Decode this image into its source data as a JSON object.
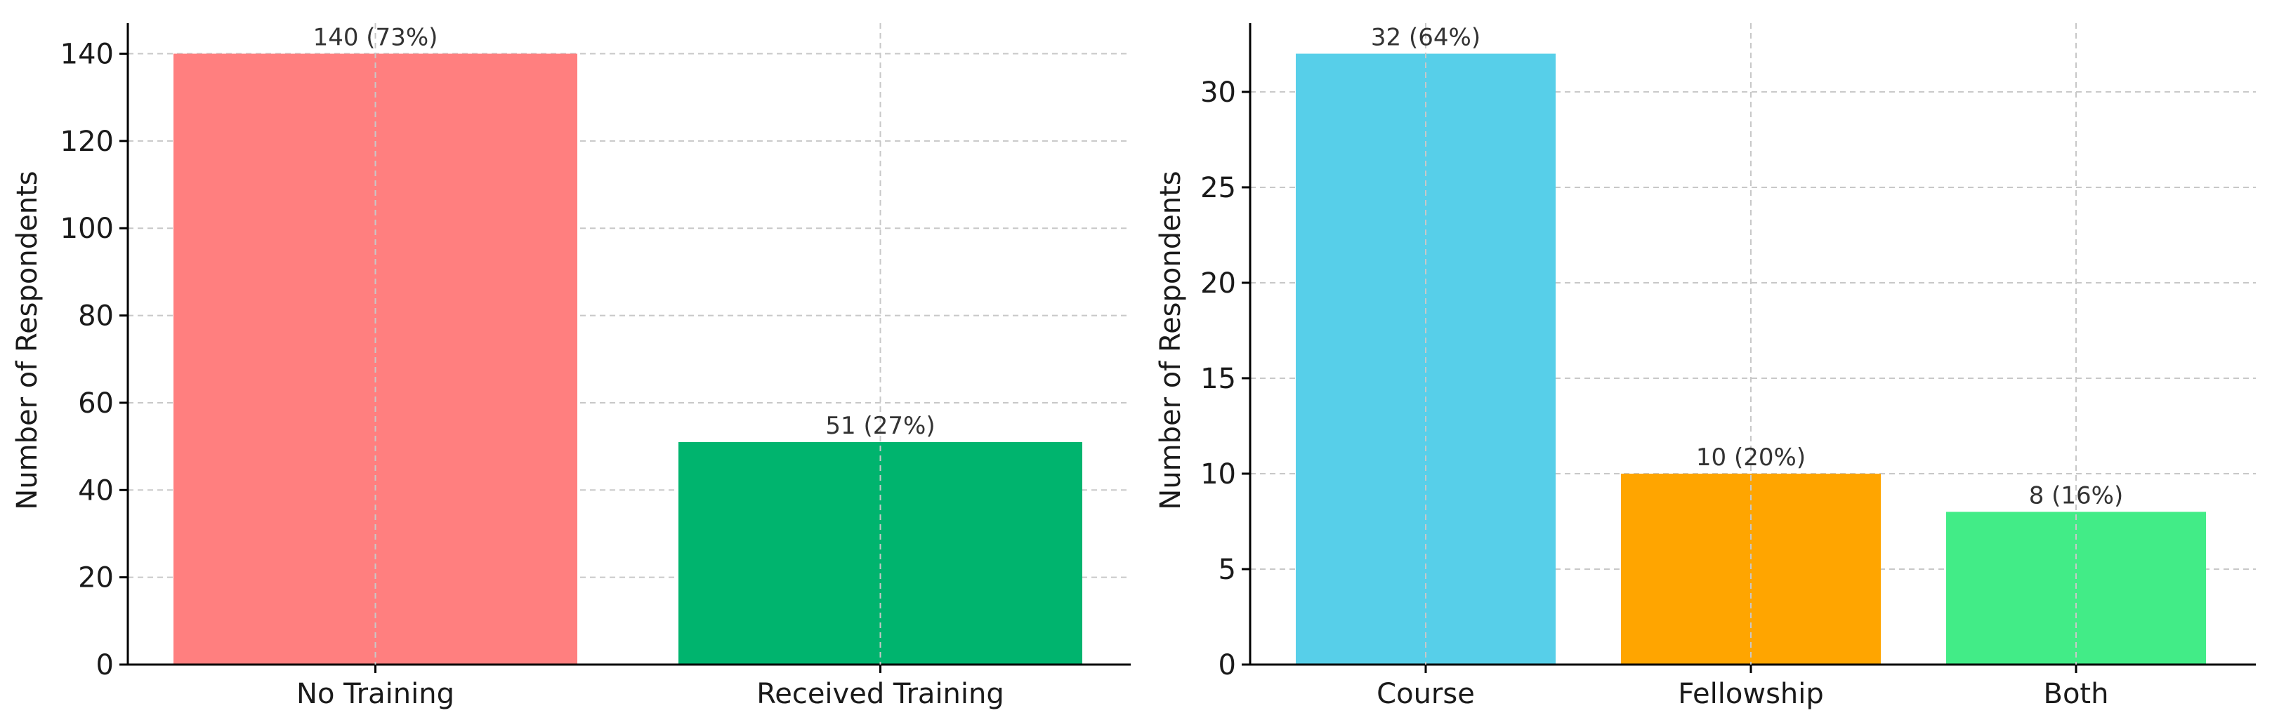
{
  "chart_data": [
    {
      "type": "bar",
      "title": "",
      "xlabel": "",
      "ylabel": "Number of Respondents",
      "categories": [
        "No Training",
        "Received Training"
      ],
      "values": [
        140,
        51
      ],
      "bar_labels": [
        "140 (73%)",
        "51 (27%)"
      ],
      "colors": [
        "#ff7f7f",
        "#00b46e"
      ],
      "ylim": [
        0,
        147
      ],
      "yticks": [
        0,
        20,
        40,
        60,
        80,
        100,
        120,
        140
      ],
      "grid": true
    },
    {
      "type": "bar",
      "title": "",
      "xlabel": "",
      "ylabel": "Number of Respondents",
      "categories": [
        "Course",
        "Fellowship",
        "Both"
      ],
      "values": [
        32,
        10,
        8
      ],
      "bar_labels": [
        "32 (64%)",
        "10 (20%)",
        "8 (16%)"
      ],
      "colors": [
        "#57cfe9",
        "#ffa500",
        "#42ec87"
      ],
      "ylim": [
        0,
        33.6
      ],
      "yticks": [
        0,
        5,
        10,
        15,
        20,
        25,
        30
      ],
      "grid": true
    }
  ]
}
